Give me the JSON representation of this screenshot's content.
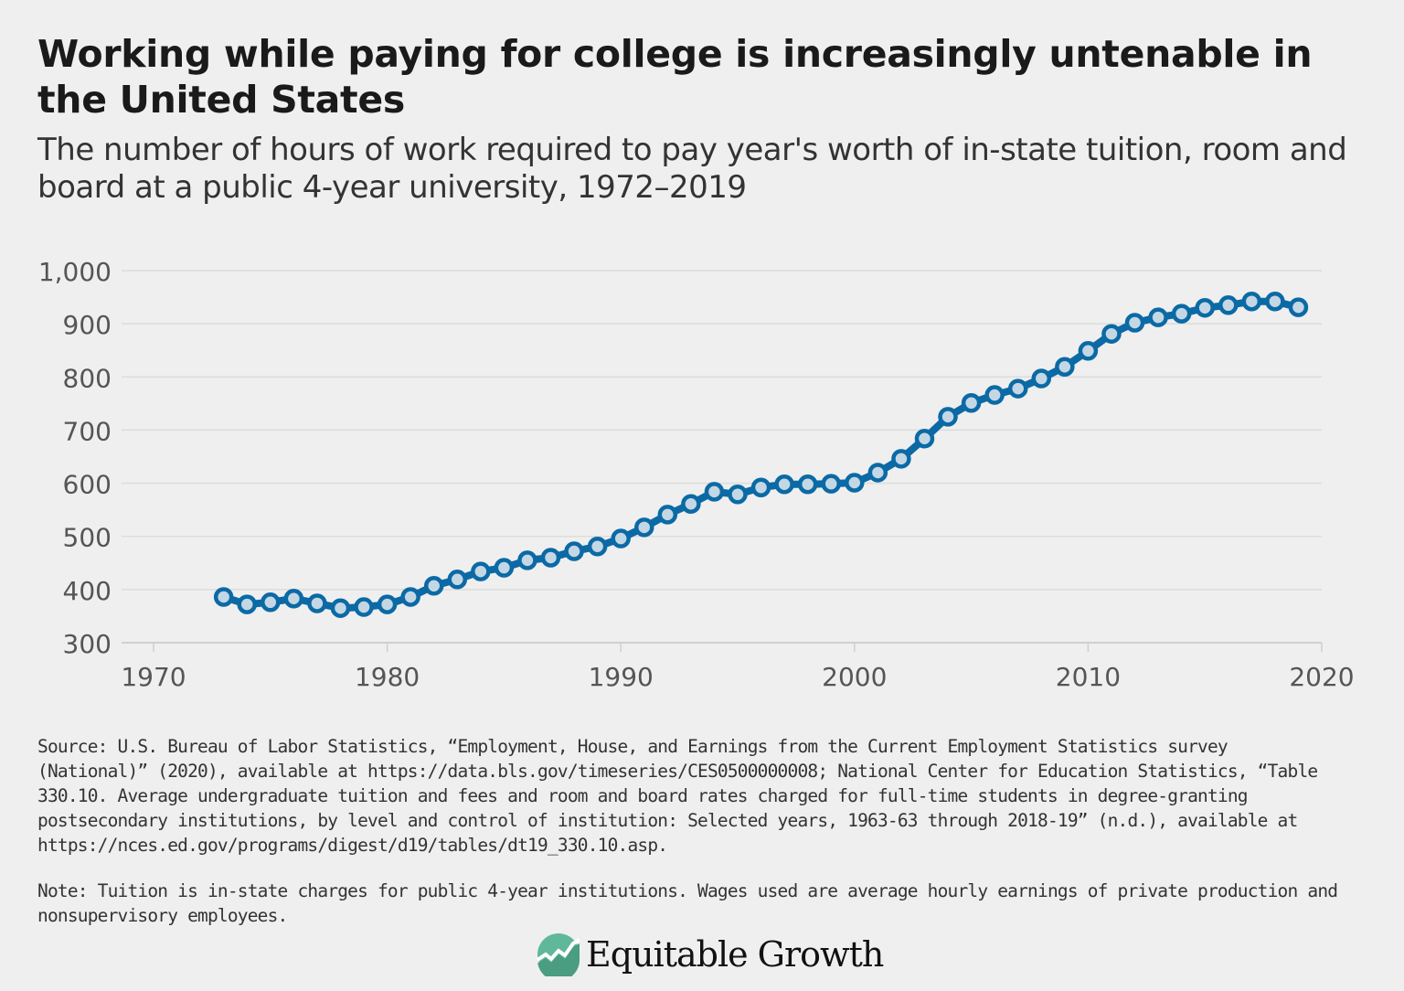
{
  "chart_data": {
    "type": "line",
    "title": "Working while paying for college is increasingly untenable in the United States",
    "subtitle": "The number of hours of work required to pay year's worth of in-state tuition, room and board at a public 4-year university, 1972–2019",
    "xlabel": "",
    "ylabel": "",
    "xlim": [
      1970,
      2020
    ],
    "ylim": [
      300,
      1000
    ],
    "x_ticks": [
      "1970",
      "1980",
      "1990",
      "2000",
      "2010",
      "2020"
    ],
    "y_ticks": [
      "300",
      "400",
      "500",
      "600",
      "700",
      "800",
      "900",
      "1,000"
    ],
    "grid": "horizontal",
    "markers": true,
    "colors": {
      "line": "#0b6aa5",
      "marker_fill": "#c4d7e5",
      "grid": "#d9d9d9",
      "background": "#efefef"
    },
    "x": [
      1973,
      1974,
      1975,
      1976,
      1977,
      1978,
      1979,
      1980,
      1981,
      1982,
      1983,
      1984,
      1985,
      1986,
      1987,
      1988,
      1989,
      1990,
      1991,
      1992,
      1993,
      1994,
      1995,
      1996,
      1997,
      1998,
      1999,
      2000,
      2001,
      2002,
      2003,
      2004,
      2005,
      2006,
      2007,
      2008,
      2009,
      2010,
      2011,
      2012,
      2013,
      2014,
      2015,
      2016,
      2017,
      2018,
      2019
    ],
    "values": [
      386,
      372,
      376,
      383,
      374,
      365,
      367,
      372,
      386,
      407,
      419,
      434,
      441,
      455,
      460,
      472,
      481,
      496,
      517,
      541,
      561,
      584,
      579,
      592,
      598,
      598,
      599,
      601,
      620,
      646,
      684,
      725,
      751,
      766,
      778,
      797,
      819,
      849,
      881,
      902,
      912,
      919,
      930,
      935,
      942,
      942,
      931
    ]
  },
  "footer": {
    "source": "Source: U.S. Bureau of Labor Statistics, “Employment, House, and Earnings from the Current Employment Statistics survey (National)” (2020), available at https://data.bls.gov/timeseries/CES0500000008; National Center for Education Statistics, “Table 330.10. Average undergraduate tuition and fees and room and board rates charged for full-time students in degree-granting postsecondary institutions, by level and control of institution: Selected years, 1963-63 through 2018-19” (n.d.), available at https://nces.ed.gov/programs/digest/d19/tables/dt19_330.10.asp.",
    "note": "Note: Tuition is in-state charges for public 4-year institutions. Wages used are average hourly earnings of private production and nonsupervisory employees.",
    "logo_text": "Equitable Growth",
    "logo_color": "#5fb89a"
  }
}
